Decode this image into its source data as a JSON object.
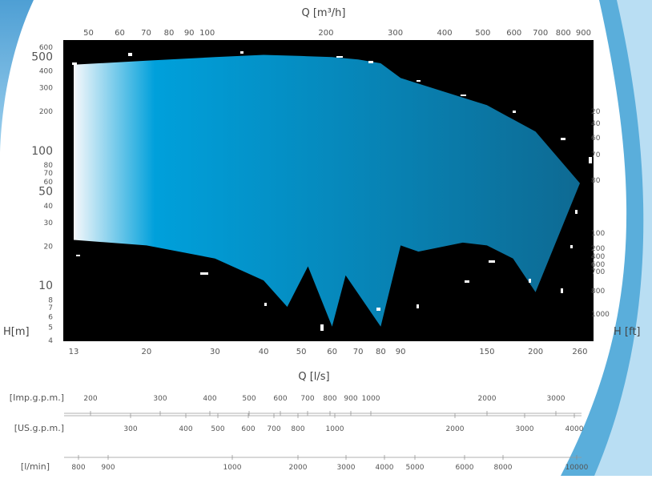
{
  "chart_data": {
    "type": "area",
    "title": "",
    "axes": {
      "top_x": {
        "label": "Q [m³/h]",
        "scale": "log",
        "range": [
          45,
          950
        ],
        "ticks": [
          50,
          60,
          70,
          80,
          90,
          100,
          200,
          300,
          400,
          500,
          600,
          700,
          800,
          900
        ]
      },
      "bottom_x": {
        "label": "Q [l/s]",
        "scale": "log",
        "range": [
          13,
          265
        ],
        "ticks": [
          13,
          20,
          30,
          40,
          50,
          60,
          70,
          80,
          90,
          150,
          200,
          260
        ]
      },
      "left_y": {
        "label": "H[m]",
        "scale": "log",
        "range": [
          4,
          600
        ],
        "ticks": [
          4,
          5,
          6,
          7,
          8,
          10,
          20,
          30,
          40,
          50,
          60,
          70,
          80,
          100,
          200,
          300,
          400,
          500,
          600
        ]
      },
      "right_y": {
        "label": "H [ft]",
        "scale": "log",
        "ticks": [
          "20",
          "40",
          "60",
          "70",
          "80",
          "100",
          "200",
          "400",
          "600",
          "700",
          "800",
          "1000"
        ]
      }
    },
    "secondary_scales": [
      {
        "label": "[Imp.g.p.m.]",
        "ticks": [
          200,
          300,
          400,
          500,
          600,
          700,
          800,
          900,
          1000,
          2000,
          3000
        ]
      },
      {
        "label": "[US.g.p.m.]",
        "ticks": [
          300,
          400,
          500,
          600,
          700,
          800,
          1000,
          2000,
          3000,
          4000
        ]
      },
      {
        "label": "[l/min]",
        "ticks": [
          800,
          900,
          1000,
          2000,
          3000,
          4000,
          5000,
          6000,
          8000,
          10000
        ]
      }
    ],
    "envelope": {
      "upper": [
        [
          13,
          440
        ],
        [
          20,
          470
        ],
        [
          30,
          500
        ],
        [
          40,
          520
        ],
        [
          50,
          510
        ],
        [
          60,
          500
        ],
        [
          70,
          480
        ],
        [
          80,
          450
        ],
        [
          90,
          350
        ],
        [
          150,
          220
        ],
        [
          200,
          140
        ],
        [
          260,
          58
        ]
      ],
      "lower": [
        [
          13,
          22
        ],
        [
          20,
          20
        ],
        [
          30,
          16
        ],
        [
          40,
          11
        ],
        [
          46,
          7
        ],
        [
          52,
          14
        ],
        [
          60,
          5
        ],
        [
          65,
          12
        ],
        [
          80,
          5
        ],
        [
          90,
          20
        ],
        [
          100,
          18
        ],
        [
          130,
          21
        ],
        [
          150,
          20
        ],
        [
          175,
          16
        ],
        [
          200,
          9
        ],
        [
          260,
          58
        ]
      ]
    },
    "colors": {
      "background": "#000000",
      "fill_left": "#f6f8fb",
      "fill_mid": "#00a0db",
      "fill_right": "#0e6a93",
      "frame": "#7fc6e6"
    }
  }
}
